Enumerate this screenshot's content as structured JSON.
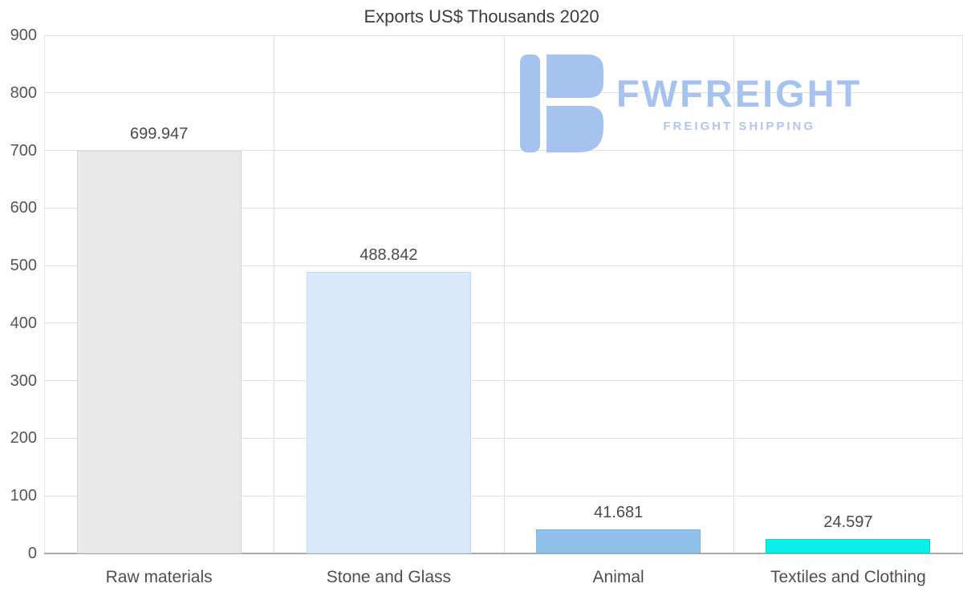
{
  "chart_data": {
    "type": "bar",
    "title": "Exports US$ Thousands 2020",
    "categories": [
      "Raw materials",
      "Stone and Glass",
      "Animal",
      "Textiles and Clothing"
    ],
    "values": [
      699.947,
      488.842,
      41.681,
      24.597
    ],
    "value_labels": [
      "699.947",
      "488.842",
      "41.681",
      "24.597"
    ],
    "bar_fill_colors": [
      "#e9e9e9",
      "#d9e9fa",
      "#8fc0e9",
      "#0aefe9"
    ],
    "bar_border_colors": [
      "#d6d6d6",
      "#c3dbf4",
      "#7bb2e0",
      "#00d9d4"
    ],
    "xlabel": "",
    "ylabel": "",
    "ylim": [
      0,
      900
    ],
    "yticks": [
      0,
      100,
      200,
      300,
      400,
      500,
      600,
      700,
      800,
      900
    ],
    "grid": true,
    "legend": null
  },
  "logo": {
    "brand": "FWFREIGHT",
    "tagline": "FREIGHT SHIPPING",
    "color": "#a6c3f0"
  }
}
